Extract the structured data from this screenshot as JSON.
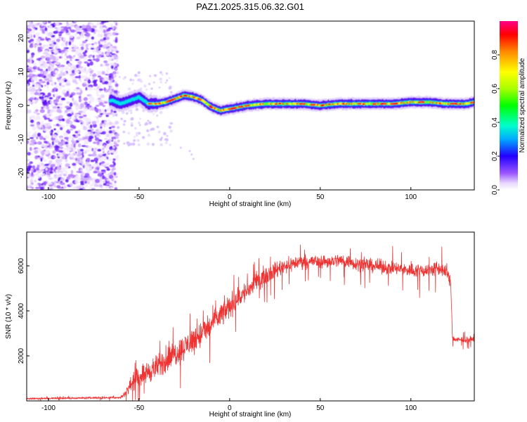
{
  "figure": {
    "title": "PAZ1.2025.315.06.32.G01"
  },
  "chart_data": [
    {
      "type": "heatmap",
      "name": "spectrogram",
      "xlabel": "Height of straight line (km)",
      "ylabel": "Frequency (Hz)",
      "xlim": [
        -112,
        135
      ],
      "ylim": [
        -25,
        25
      ],
      "xticks": [
        -100,
        -50,
        0,
        50,
        100
      ],
      "yticks": [
        -20,
        -10,
        0,
        10,
        20
      ],
      "colorbar": {
        "label": "Normalized spectral amplitude",
        "range": [
          0,
          1
        ],
        "ticks": [
          0.0,
          0.2,
          0.4,
          0.6,
          0.8
        ],
        "tick_labels": [
          "0.0",
          "0.2",
          "0.4",
          "0.6",
          "0.8"
        ]
      },
      "ridge_frequency": {
        "x": [
          -65,
          -60,
          -55,
          -50,
          -45,
          -40,
          -35,
          -30,
          -25,
          -20,
          -15,
          -10,
          -5,
          0,
          5,
          10,
          20,
          30,
          40,
          50,
          60,
          70,
          80,
          90,
          100,
          110,
          120,
          130,
          135
        ],
        "y": [
          1.5,
          0.5,
          1.5,
          2.5,
          0.5,
          0.5,
          1.0,
          2.0,
          3.0,
          2.5,
          1.5,
          -0.5,
          -1.5,
          -1.0,
          -0.5,
          0.0,
          0.5,
          0.5,
          0.5,
          0.0,
          0.5,
          0.5,
          0.5,
          0.5,
          1.0,
          1.0,
          0.5,
          0.5,
          1.0
        ]
      },
      "noise_region_x": [
        -112,
        -62
      ]
    },
    {
      "type": "line",
      "name": "snr",
      "xlabel": "Height of straight line (km)",
      "ylabel": "SNR (10 * v/v)",
      "xlim": [
        -112,
        135
      ],
      "ylim": [
        0,
        7500
      ],
      "xticks": [
        -100,
        -50,
        0,
        50,
        100
      ],
      "yticks": [
        2000,
        4000,
        6000
      ],
      "color": "#ee3333",
      "envelope": {
        "x": [
          -112,
          -60,
          -57,
          -55,
          -50,
          -45,
          -40,
          -35,
          -30,
          -25,
          -20,
          -15,
          -10,
          -5,
          0,
          5,
          10,
          15,
          20,
          25,
          30,
          35,
          40,
          45,
          50,
          55,
          60,
          65,
          70,
          80,
          90,
          100,
          110,
          115,
          120,
          122,
          123,
          125,
          135
        ],
        "mean": [
          100,
          150,
          400,
          700,
          1100,
          1300,
          1500,
          1800,
          2100,
          2400,
          2700,
          3000,
          3400,
          3800,
          4200,
          4600,
          4900,
          5300,
          5600,
          5800,
          6000,
          6100,
          6200,
          6200,
          6200,
          6200,
          6250,
          6200,
          6100,
          6000,
          5900,
          5800,
          5800,
          5900,
          5700,
          5200,
          2800,
          2700,
          2750
        ],
        "amplitude": [
          60,
          60,
          250,
          450,
          650,
          750,
          800,
          850,
          850,
          850,
          900,
          900,
          850,
          850,
          800,
          750,
          700,
          650,
          600,
          550,
          500,
          500,
          450,
          450,
          450,
          450,
          450,
          450,
          450,
          450,
          450,
          450,
          500,
          500,
          450,
          400,
          200,
          200,
          200
        ]
      }
    }
  ]
}
